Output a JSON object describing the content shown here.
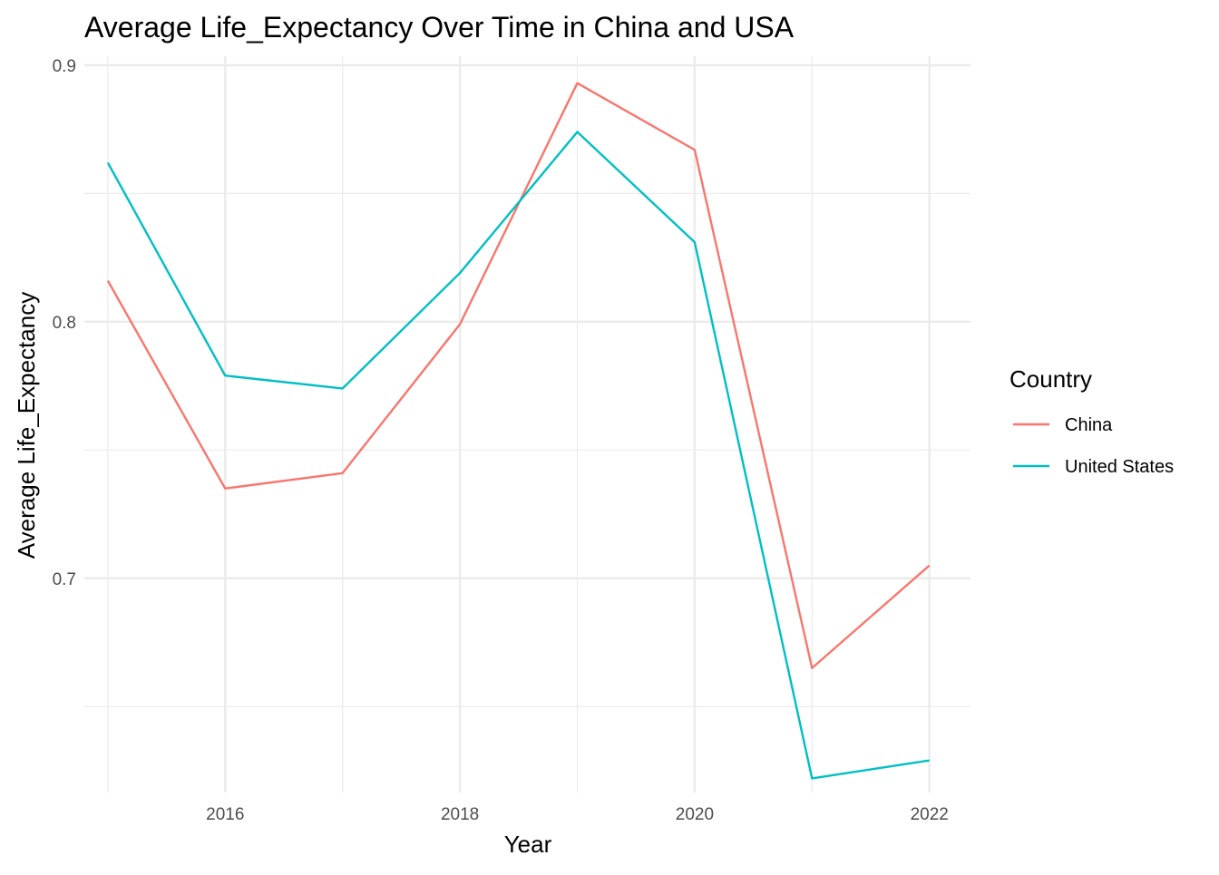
{
  "chart_data": {
    "type": "line",
    "title": "Average Life_Expectancy Over Time in China and USA",
    "xlabel": "Year",
    "ylabel": "Average Life_Expectancy",
    "x": [
      2015,
      2016,
      2017,
      2018,
      2019,
      2020,
      2021,
      2022
    ],
    "x_ticks": [
      2016,
      2018,
      2020,
      2022
    ],
    "x_tick_labels": [
      "2016",
      "2018",
      "2020",
      "2022"
    ],
    "y_ticks": [
      0.7,
      0.8,
      0.9
    ],
    "y_tick_labels": [
      "0.7",
      "0.8",
      "0.9"
    ],
    "xlim": [
      2014.8,
      2022.35
    ],
    "ylim": [
      0.6165,
      0.9035
    ],
    "grid": true,
    "legend": {
      "title": "Country",
      "placement": "right"
    },
    "series": [
      {
        "name": "China",
        "color": "#F8766D",
        "values": [
          0.816,
          0.735,
          0.741,
          0.799,
          0.893,
          0.867,
          0.665,
          0.705
        ]
      },
      {
        "name": "United States",
        "color": "#00BFC4",
        "values": [
          0.862,
          0.779,
          0.774,
          0.819,
          0.874,
          0.831,
          0.622,
          0.629
        ]
      }
    ]
  }
}
